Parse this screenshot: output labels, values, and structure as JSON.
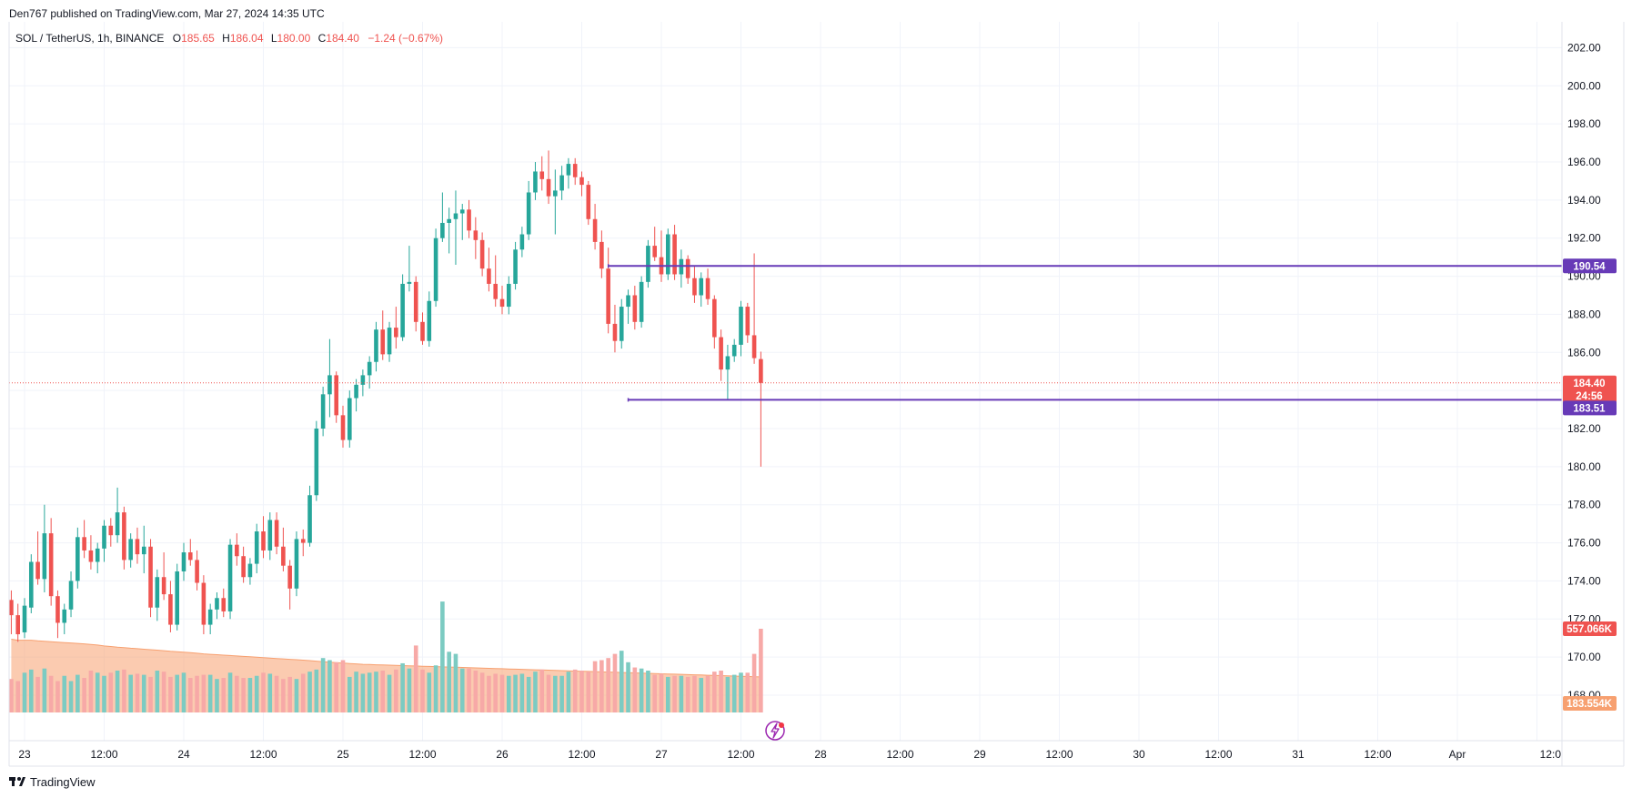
{
  "header": {
    "published": "Den767 published on TradingView.com, Mar 27, 2024 14:35 UTC"
  },
  "legend": {
    "symbol": "SOL / TetherUS, 1h, BINANCE",
    "o_label": "O",
    "o_value": "185.65",
    "h_label": "H",
    "h_value": "186.04",
    "l_label": "L",
    "l_value": "180.00",
    "c_label": "C",
    "c_value": "184.40",
    "change": "−1.24 (−0.67%)"
  },
  "footer": {
    "brand": "TradingView"
  },
  "colors": {
    "up": "#26a69a",
    "down": "#ef5350",
    "level": "#673ab7",
    "vol_up": "#7ccbc2",
    "vol_down": "#f7a9a7",
    "vol_ma": "#f7a070",
    "grid": "#f0f3fa"
  },
  "chart_data": {
    "type": "candlestick",
    "title": "SOL / TetherUS, 1h, BINANCE",
    "ylim": [
      167.0,
      204.0
    ],
    "y_ticks": [
      "202.00",
      "200.00",
      "198.00",
      "196.00",
      "194.00",
      "192.00",
      "190.00",
      "188.00",
      "186.00",
      "184.00",
      "182.00",
      "180.00",
      "178.00",
      "176.00",
      "174.00",
      "172.00",
      "170.00",
      "168.00"
    ],
    "y_tick_values": [
      202,
      200,
      198,
      196,
      194,
      192,
      190,
      188,
      186,
      184,
      182,
      180,
      178,
      176,
      174,
      172,
      170,
      168
    ],
    "x_ticks": [
      "23",
      "12:00",
      "24",
      "12:00",
      "25",
      "12:00",
      "26",
      "12:00",
      "27",
      "12:00",
      "28",
      "12:00",
      "29",
      "12:00",
      "30",
      "12:00",
      "31",
      "12:00",
      "Apr",
      "12:0"
    ],
    "x_tick_hours": [
      0,
      12,
      24,
      36,
      48,
      60,
      72,
      84,
      96,
      108,
      120,
      132,
      144,
      156,
      168,
      180,
      192,
      204,
      216,
      228
    ],
    "first_bar_hour": -2,
    "candles": [
      [
        173.0,
        173.5,
        171.2,
        172.2
      ],
      [
        172.2,
        172.8,
        170.8,
        171.2
      ],
      [
        171.3,
        173.1,
        171.0,
        172.7
      ],
      [
        172.6,
        175.4,
        172.3,
        175.0
      ],
      [
        175.0,
        176.6,
        173.8,
        174.1
      ],
      [
        174.1,
        178.0,
        173.4,
        176.5
      ],
      [
        176.5,
        177.3,
        172.7,
        173.2
      ],
      [
        173.2,
        173.5,
        171.0,
        171.8
      ],
      [
        171.8,
        172.8,
        171.2,
        172.5
      ],
      [
        172.5,
        174.5,
        172.1,
        174.0
      ],
      [
        174.0,
        176.8,
        173.6,
        176.3
      ],
      [
        176.3,
        177.2,
        175.2,
        175.6
      ],
      [
        175.6,
        176.4,
        174.6,
        175.0
      ],
      [
        175.0,
        176.0,
        174.4,
        175.7
      ],
      [
        175.7,
        177.2,
        175.0,
        176.9
      ],
      [
        176.9,
        177.3,
        175.8,
        176.4
      ],
      [
        176.4,
        178.9,
        176.0,
        177.6
      ],
      [
        177.6,
        177.9,
        174.6,
        175.1
      ],
      [
        175.1,
        176.5,
        174.7,
        176.2
      ],
      [
        176.2,
        176.8,
        174.9,
        175.4
      ],
      [
        175.4,
        176.9,
        174.4,
        175.8
      ],
      [
        175.8,
        176.2,
        172.1,
        172.6
      ],
      [
        172.6,
        174.6,
        171.9,
        174.2
      ],
      [
        174.2,
        175.5,
        173.0,
        173.3
      ],
      [
        173.3,
        174.0,
        171.3,
        171.7
      ],
      [
        171.7,
        174.9,
        171.4,
        174.5
      ],
      [
        174.5,
        176.0,
        174.0,
        175.5
      ],
      [
        175.5,
        176.2,
        174.8,
        175.1
      ],
      [
        175.1,
        175.6,
        173.5,
        173.9
      ],
      [
        173.9,
        174.3,
        171.2,
        171.7
      ],
      [
        171.7,
        172.8,
        171.2,
        172.5
      ],
      [
        172.5,
        173.4,
        172.0,
        173.1
      ],
      [
        173.1,
        173.6,
        172.1,
        172.4
      ],
      [
        172.4,
        176.2,
        172.0,
        175.9
      ],
      [
        175.9,
        176.5,
        174.8,
        175.3
      ],
      [
        175.3,
        175.8,
        173.9,
        174.2
      ],
      [
        174.2,
        175.2,
        173.8,
        174.9
      ],
      [
        174.9,
        177.0,
        174.4,
        176.6
      ],
      [
        176.6,
        177.4,
        175.2,
        175.6
      ],
      [
        175.6,
        177.6,
        175.1,
        177.2
      ],
      [
        177.2,
        177.6,
        175.4,
        175.8
      ],
      [
        175.8,
        176.8,
        174.5,
        174.8
      ],
      [
        174.8,
        175.1,
        172.5,
        173.6
      ],
      [
        173.6,
        176.6,
        173.2,
        176.2
      ],
      [
        176.2,
        176.7,
        175.3,
        176.0
      ],
      [
        176.0,
        179.0,
        175.8,
        178.5
      ],
      [
        178.5,
        182.4,
        178.2,
        182.0
      ],
      [
        182.0,
        184.2,
        181.6,
        183.8
      ],
      [
        183.8,
        186.7,
        182.6,
        184.8
      ],
      [
        184.8,
        185.0,
        182.3,
        182.7
      ],
      [
        182.7,
        183.2,
        181.0,
        181.4
      ],
      [
        181.4,
        184.0,
        181.0,
        183.6
      ],
      [
        183.6,
        184.6,
        182.9,
        184.3
      ],
      [
        184.3,
        185.1,
        183.7,
        184.8
      ],
      [
        184.8,
        185.8,
        184.1,
        185.5
      ],
      [
        185.5,
        187.6,
        185.0,
        187.2
      ],
      [
        187.2,
        188.2,
        185.6,
        185.9
      ],
      [
        185.9,
        187.6,
        185.5,
        187.3
      ],
      [
        187.3,
        188.4,
        186.2,
        186.8
      ],
      [
        186.8,
        190.1,
        186.6,
        189.6
      ],
      [
        189.6,
        191.6,
        189.2,
        189.7
      ],
      [
        189.7,
        190.0,
        187.1,
        187.6
      ],
      [
        187.6,
        188.1,
        186.4,
        186.6
      ],
      [
        186.6,
        189.2,
        186.3,
        188.7
      ],
      [
        188.7,
        192.5,
        188.4,
        192.0
      ],
      [
        192.0,
        194.4,
        191.8,
        192.8
      ],
      [
        192.8,
        193.6,
        191.2,
        193.0
      ],
      [
        193.0,
        194.5,
        190.6,
        193.3
      ],
      [
        193.3,
        193.8,
        191.9,
        193.5
      ],
      [
        193.5,
        194.0,
        192.0,
        192.4
      ],
      [
        192.4,
        193.1,
        190.9,
        191.9
      ],
      [
        191.9,
        192.3,
        190.0,
        190.4
      ],
      [
        190.4,
        191.5,
        189.2,
        189.6
      ],
      [
        189.6,
        191.1,
        188.4,
        188.8
      ],
      [
        188.8,
        189.5,
        188.0,
        188.4
      ],
      [
        188.4,
        190.0,
        188.0,
        189.6
      ],
      [
        189.6,
        191.8,
        189.3,
        191.4
      ],
      [
        191.4,
        192.6,
        191.0,
        192.2
      ],
      [
        192.2,
        195.0,
        191.9,
        194.4
      ],
      [
        194.4,
        196.0,
        194.0,
        195.5
      ],
      [
        195.5,
        196.3,
        194.5,
        195.1
      ],
      [
        195.1,
        196.6,
        193.8,
        194.2
      ],
      [
        194.2,
        195.6,
        192.2,
        194.5
      ],
      [
        194.5,
        195.8,
        194.0,
        195.3
      ],
      [
        195.3,
        196.2,
        194.6,
        195.9
      ],
      [
        195.9,
        196.2,
        194.8,
        195.2
      ],
      [
        195.2,
        195.5,
        194.2,
        194.8
      ],
      [
        194.8,
        195.0,
        192.7,
        193.0
      ],
      [
        193.0,
        193.8,
        191.4,
        191.8
      ],
      [
        191.8,
        192.4,
        189.9,
        190.4
      ],
      [
        190.4,
        191.5,
        187.0,
        187.5
      ],
      [
        187.5,
        188.5,
        186.0,
        186.6
      ],
      [
        186.6,
        188.8,
        186.2,
        188.4
      ],
      [
        188.4,
        189.3,
        187.5,
        189.0
      ],
      [
        189.0,
        189.5,
        187.2,
        187.6
      ],
      [
        187.6,
        190.0,
        187.3,
        189.7
      ],
      [
        189.7,
        191.9,
        189.4,
        191.6
      ],
      [
        191.6,
        192.6,
        190.8,
        191.0
      ],
      [
        191.0,
        192.4,
        189.7,
        190.1
      ],
      [
        190.1,
        192.5,
        189.8,
        192.2
      ],
      [
        192.2,
        192.7,
        189.8,
        190.1
      ],
      [
        190.1,
        191.4,
        189.4,
        190.9
      ],
      [
        190.9,
        191.1,
        189.6,
        189.9
      ],
      [
        189.9,
        190.5,
        188.6,
        189.0
      ],
      [
        189.0,
        190.2,
        188.4,
        189.9
      ],
      [
        189.9,
        190.4,
        188.5,
        188.8
      ],
      [
        188.8,
        189.0,
        186.2,
        186.8
      ],
      [
        186.8,
        187.2,
        184.5,
        185.1
      ],
      [
        185.1,
        186.4,
        183.5,
        185.8
      ],
      [
        185.8,
        186.7,
        185.5,
        186.4
      ],
      [
        186.4,
        188.7,
        185.8,
        188.4
      ],
      [
        188.4,
        188.6,
        186.5,
        186.9
      ],
      [
        186.9,
        191.2,
        185.4,
        185.7
      ],
      [
        185.65,
        186.04,
        180.0,
        184.4
      ]
    ],
    "volume_ylim": [
      0,
      1000
    ],
    "volumes": [
      160,
      150,
      190,
      205,
      170,
      210,
      175,
      150,
      175,
      150,
      180,
      165,
      200,
      190,
      175,
      190,
      200,
      205,
      180,
      185,
      180,
      170,
      200,
      195,
      170,
      180,
      190,
      165,
      175,
      180,
      180,
      160,
      165,
      190,
      175,
      165,
      165,
      175,
      190,
      185,
      175,
      160,
      170,
      160,
      185,
      195,
      205,
      260,
      250,
      240,
      250,
      170,
      195,
      185,
      190,
      195,
      200,
      180,
      205,
      235,
      210,
      320,
      205,
      190,
      225,
      530,
      290,
      280,
      210,
      210,
      200,
      190,
      175,
      185,
      180,
      175,
      180,
      185,
      170,
      195,
      205,
      180,
      175,
      175,
      195,
      205,
      200,
      195,
      245,
      250,
      260,
      280,
      295,
      240,
      215,
      210,
      200,
      180,
      185,
      170,
      175,
      175,
      170,
      175,
      165,
      175,
      195,
      200,
      170,
      180,
      190,
      190,
      280,
      400
    ],
    "volume_ma": [
      350,
      345,
      345,
      345,
      342,
      340,
      338,
      336,
      334,
      332,
      330,
      328,
      325,
      322,
      318,
      315,
      312,
      310,
      307,
      305,
      302,
      300,
      298,
      295,
      292,
      290,
      288,
      286,
      283,
      280,
      278,
      276,
      274,
      272,
      270,
      268,
      266,
      264,
      262,
      260,
      258,
      256,
      254,
      252,
      250,
      248,
      245,
      242,
      240,
      238,
      236,
      234,
      232,
      230,
      229,
      228,
      227,
      226,
      225,
      224,
      223,
      222,
      221,
      220,
      219,
      218,
      217,
      216,
      215,
      214,
      213,
      212,
      211,
      210,
      209,
      208,
      207,
      206,
      205,
      204,
      203,
      202,
      201,
      200,
      199,
      198,
      197,
      196,
      195,
      194,
      193,
      192,
      191,
      190,
      189,
      188,
      187,
      186,
      185,
      184,
      183,
      182,
      181,
      180,
      179,
      178,
      177,
      176,
      175,
      174,
      173,
      172,
      171,
      170
    ],
    "levels": [
      {
        "label": "190.54",
        "value": 190.54,
        "start_bar": 90
      },
      {
        "label": "183.51",
        "value": 183.51,
        "start_bar": 93
      }
    ],
    "price_tag": {
      "value": 184.4,
      "label": "184.40",
      "countdown": "24:56"
    },
    "volume_tag": {
      "label": "557.066K"
    },
    "volume_ma_tag": {
      "label": "183.554K"
    }
  }
}
